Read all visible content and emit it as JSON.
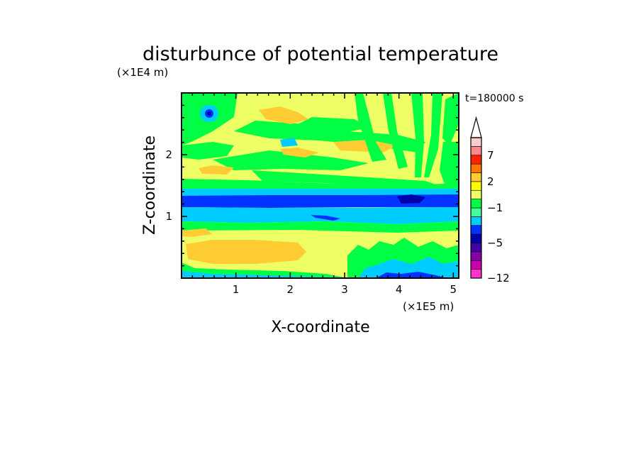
{
  "chart_data": {
    "type": "heatmap",
    "title": "disturbunce of potential temperature",
    "xlabel": "X-coordinate",
    "ylabel": "Z-coordinate",
    "x_unit": "(×1E5 m)",
    "y_unit": "(×1E4 m)",
    "time_label": "t=180000 s",
    "xlim": [
      0,
      5.1
    ],
    "ylim": [
      0,
      3.0
    ],
    "x_ticks": [
      "1",
      "2",
      "3",
      "4",
      "5"
    ],
    "x_tick_values": [
      1,
      2,
      3,
      4,
      5
    ],
    "y_ticks": [
      "1",
      "2"
    ],
    "y_tick_values": [
      1,
      2
    ],
    "colorbar": {
      "levels": [
        -12,
        -10,
        -8,
        -6,
        -5,
        -4,
        -3,
        -2,
        -1,
        0,
        1,
        2,
        3,
        5,
        7,
        9,
        11
      ],
      "labeled": [
        {
          "value": -12,
          "text": "−12"
        },
        {
          "value": -5,
          "text": "−5"
        },
        {
          "value": -1,
          "text": "−1"
        },
        {
          "value": 2,
          "text": "2"
        },
        {
          "value": 7,
          "text": "7"
        }
      ],
      "colors": [
        "#ff33cc",
        "#cc00aa",
        "#8800aa",
        "#4400aa",
        "#0000aa",
        "#0033ff",
        "#00ccff",
        "#44ff99",
        "#00ff44",
        "#eeff66",
        "#ffff00",
        "#ffcc33",
        "#ff7700",
        "#ff2200",
        "#ff8888",
        "#ffcccc"
      ],
      "extend": "max"
    },
    "field_description": "dominant value between -1 and 2, horizontal bands of anomalies",
    "bands": [
      {
        "name": "upper blue band",
        "z_from": 1.19,
        "z_to": 1.33,
        "value": -4
      },
      {
        "name": "cyan band",
        "z_from": 0.96,
        "z_to": 1.19,
        "value": -2
      },
      {
        "name": "lower orange band",
        "z_from": 0.25,
        "z_to": 0.55,
        "value": 2.5
      }
    ]
  }
}
